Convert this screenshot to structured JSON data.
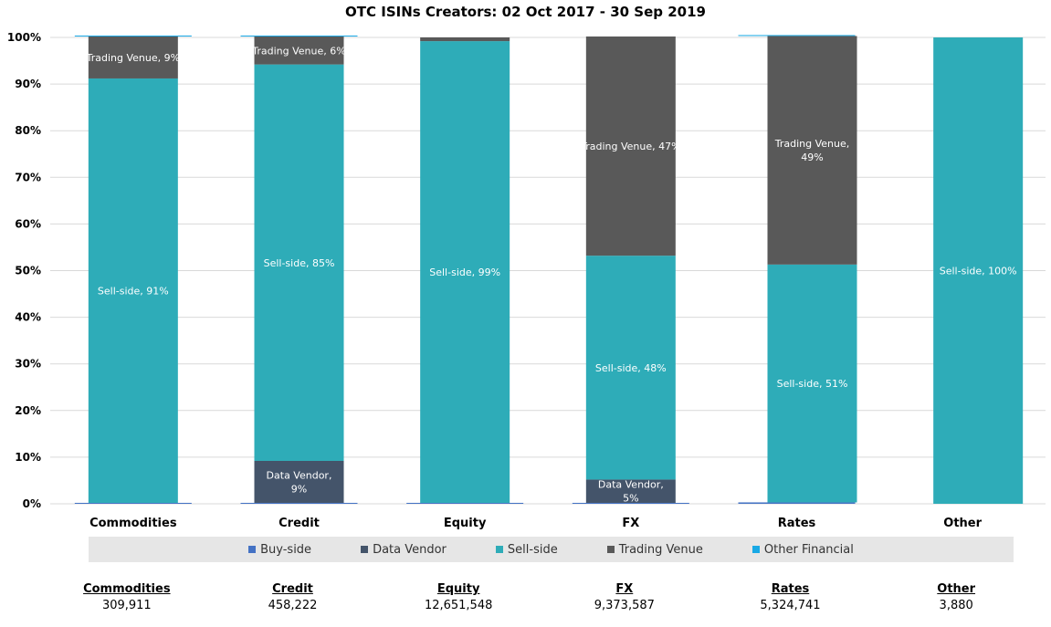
{
  "chart_data": {
    "type": "bar",
    "stacked": true,
    "percent": true,
    "title": "OTC ISINs Creators: 02 Oct 2017 - 30 Sep 2019",
    "categories": [
      "Commodities",
      "Credit",
      "Equity",
      "FX",
      "Rates",
      "Other"
    ],
    "ylim": [
      0,
      100
    ],
    "yticks": [
      "0%",
      "10%",
      "20%",
      "30%",
      "40%",
      "50%",
      "60%",
      "70%",
      "80%",
      "90%",
      "100%"
    ],
    "ytick_values": [
      0,
      10,
      20,
      30,
      40,
      50,
      60,
      70,
      80,
      90,
      100
    ],
    "grid": true,
    "legend_position": "bottom",
    "series": [
      {
        "name": "Buy-side",
        "color": "#4472c4",
        "values": [
          0.2,
          0.2,
          0.2,
          0.2,
          0.3,
          0
        ]
      },
      {
        "name": "Data Vendor",
        "color": "#44546a",
        "values": [
          0,
          9,
          0,
          5,
          0,
          0
        ]
      },
      {
        "name": "Sell-side",
        "color": "#2eacb8",
        "values": [
          91,
          85,
          99,
          48,
          51,
          100
        ]
      },
      {
        "name": "Trading Venue",
        "color": "#595959",
        "values": [
          9,
          6,
          0.8,
          47,
          49,
          0
        ]
      },
      {
        "name": "Other Financial",
        "color": "#19a9e5",
        "values": [
          0.2,
          0.2,
          0,
          0,
          0.2,
          0
        ]
      }
    ],
    "data_labels": [
      {
        "category": "Commodities",
        "series": "Sell-side",
        "lines": [
          "Sell-side, 91%"
        ]
      },
      {
        "category": "Commodities",
        "series": "Trading Venue",
        "lines": [
          "Trading Venue, 9%"
        ]
      },
      {
        "category": "Credit",
        "series": "Data Vendor",
        "lines": [
          "Data Vendor,",
          "9%"
        ]
      },
      {
        "category": "Credit",
        "series": "Sell-side",
        "lines": [
          "Sell-side, 85%"
        ]
      },
      {
        "category": "Credit",
        "series": "Trading Venue",
        "lines": [
          "Trading Venue, 6%"
        ]
      },
      {
        "category": "Equity",
        "series": "Sell-side",
        "lines": [
          "Sell-side, 99%"
        ]
      },
      {
        "category": "FX",
        "series": "Data Vendor",
        "lines": [
          "Data Vendor,",
          "5%"
        ]
      },
      {
        "category": "FX",
        "series": "Sell-side",
        "lines": [
          "Sell-side, 48%"
        ]
      },
      {
        "category": "FX",
        "series": "Trading Venue",
        "lines": [
          "Trading Venue, 47%"
        ]
      },
      {
        "category": "Rates",
        "series": "Sell-side",
        "lines": [
          "Sell-side, 51%"
        ]
      },
      {
        "category": "Rates",
        "series": "Trading Venue",
        "lines": [
          "Trading Venue,",
          "49%"
        ]
      },
      {
        "category": "Other",
        "series": "Sell-side",
        "lines": [
          "Sell-side, 100%"
        ]
      }
    ],
    "totals": [
      {
        "name": "Commodities",
        "value": "309,911"
      },
      {
        "name": "Credit",
        "value": "458,222"
      },
      {
        "name": "Equity",
        "value": "12,651,548"
      },
      {
        "name": "FX",
        "value": "9,373,587"
      },
      {
        "name": "Rates",
        "value": "5,324,741"
      },
      {
        "name": "Other",
        "value": "3,880"
      }
    ]
  }
}
